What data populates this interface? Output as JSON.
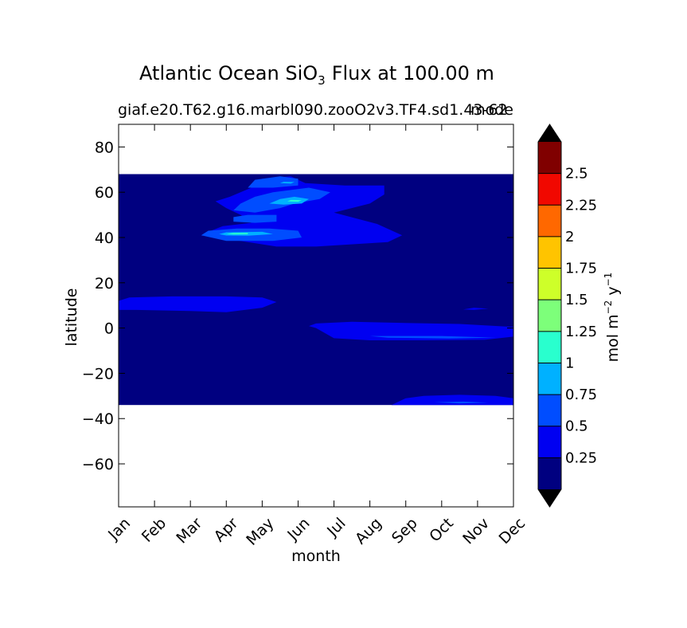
{
  "chart_data": {
    "type": "contourf",
    "title": {
      "main_prefix": "Atlantic Ocean SiO",
      "main_subscript": "3",
      "main_suffix": "Flux at 100.00 m",
      "subtitle": "giaf.e20.T62.g16.marbl090.zooO2v3.TF4.sd1.43-62",
      "subtitle_overlap": "mode"
    },
    "xlabel": "month",
    "ylabel": "latitude",
    "x_ticks": [
      "Jan",
      "Feb",
      "Mar",
      "Apr",
      "May",
      "Jun",
      "Jul",
      "Aug",
      "Sep",
      "Oct",
      "Nov",
      "Dec"
    ],
    "y_ticks": [
      80,
      60,
      40,
      20,
      0,
      -20,
      -40,
      -60
    ],
    "y_tick_labels": [
      "80",
      "60",
      "40",
      "20",
      "0",
      "−20",
      "−40",
      "−60"
    ],
    "xlim": [
      0,
      11
    ],
    "ylim": [
      -79,
      90
    ],
    "data_extent": {
      "lat_min": -34,
      "lat_max": 68
    },
    "colorbar": {
      "label_main": "mol m",
      "label_exp1": "−2",
      "label_mid": " y",
      "label_exp2": "−1",
      "extend": "both",
      "levels": [
        0,
        0.25,
        0.5,
        0.75,
        1,
        1.25,
        1.5,
        1.75,
        2,
        2.25,
        2.5,
        2.75
      ],
      "tick_labels": [
        "0.25",
        "0.5",
        "0.75",
        "1",
        "1.25",
        "1.5",
        "1.75",
        "2",
        "2.25",
        "2.5"
      ],
      "colors": [
        "#000080",
        "#0000f1",
        "#004dff",
        "#00b1ff",
        "#29ffce",
        "#7dff7a",
        "#ceff29",
        "#ffc400",
        "#ff6800",
        "#f10800",
        "#800000"
      ],
      "under_color": "#000000",
      "over_color": "#000000"
    },
    "regions": [
      {
        "level": 1,
        "poly": [
          [
            0,
            12
          ],
          [
            0.3,
            13.5
          ],
          [
            1.5,
            14
          ],
          [
            3.0,
            14
          ],
          [
            4.0,
            13.5
          ],
          [
            4.4,
            11.5
          ],
          [
            4.0,
            9
          ],
          [
            3.0,
            7
          ],
          [
            2.0,
            7.5
          ],
          [
            0.5,
            8
          ],
          [
            0,
            8
          ]
        ]
      },
      {
        "level": 1,
        "poly": [
          [
            3.6,
            38
          ],
          [
            3.2,
            39
          ],
          [
            2.7,
            40
          ],
          [
            2.5,
            42.5
          ],
          [
            2.9,
            45
          ],
          [
            3.7,
            46.5
          ],
          [
            3.4,
            50
          ],
          [
            3.0,
            53
          ],
          [
            2.7,
            56
          ],
          [
            3.1,
            58
          ],
          [
            3.7,
            62
          ],
          [
            4.0,
            66
          ],
          [
            4.8,
            67
          ],
          [
            5.2,
            64
          ],
          [
            6.3,
            63
          ],
          [
            7.4,
            63
          ],
          [
            7.4,
            59
          ],
          [
            7.0,
            55
          ],
          [
            6.0,
            51
          ],
          [
            7.2,
            46
          ],
          [
            7.9,
            41
          ],
          [
            7.5,
            38
          ],
          [
            5.5,
            36
          ],
          [
            4.4,
            36
          ]
        ]
      },
      {
        "level": 1,
        "poly": [
          [
            5.5,
            0
          ],
          [
            5.3,
            0.9
          ],
          [
            5.5,
            2
          ],
          [
            6.5,
            2.8
          ],
          [
            7.5,
            2.4
          ],
          [
            9.5,
            1.8
          ],
          [
            11,
            0.5
          ],
          [
            11,
            -3.8
          ],
          [
            10.2,
            -5.2
          ],
          [
            8.5,
            -5.4
          ],
          [
            7.0,
            -5.4
          ],
          [
            6.0,
            -4.5
          ]
        ]
      },
      {
        "level": 1,
        "poly": [
          [
            7.6,
            -34
          ],
          [
            8.0,
            -31
          ],
          [
            8.5,
            -30
          ],
          [
            9.5,
            -29.5
          ],
          [
            10.5,
            -30
          ],
          [
            11,
            -31
          ],
          [
            11,
            -34
          ]
        ]
      },
      {
        "level": 1,
        "poly": [
          [
            9.6,
            8.2
          ],
          [
            9.9,
            9
          ],
          [
            10.3,
            8.6
          ],
          [
            9.9,
            8
          ]
        ]
      },
      {
        "level": 2,
        "poly": [
          [
            2.3,
            41
          ],
          [
            2.5,
            43
          ],
          [
            3.3,
            44
          ],
          [
            4.2,
            44
          ],
          [
            5.0,
            43
          ],
          [
            5.1,
            40
          ],
          [
            4.3,
            38.5
          ],
          [
            3.0,
            38.5
          ]
        ]
      },
      {
        "level": 2,
        "poly": [
          [
            3.2,
            47
          ],
          [
            3.2,
            49
          ],
          [
            3.6,
            50
          ],
          [
            4.4,
            50
          ],
          [
            4.4,
            47
          ],
          [
            3.8,
            46.5
          ]
        ]
      },
      {
        "level": 2,
        "poly": [
          [
            3.2,
            52
          ],
          [
            3.4,
            55
          ],
          [
            3.8,
            58
          ],
          [
            4.3,
            60
          ],
          [
            5.3,
            62
          ],
          [
            5.9,
            60
          ],
          [
            5.6,
            57
          ],
          [
            4.9,
            55
          ],
          [
            4.5,
            53
          ],
          [
            3.8,
            51
          ]
        ]
      },
      {
        "level": 2,
        "poly": [
          [
            3.6,
            62
          ],
          [
            3.8,
            65.5
          ],
          [
            4.5,
            67
          ],
          [
            5.0,
            66
          ],
          [
            5.0,
            63
          ],
          [
            4.3,
            62
          ]
        ]
      },
      {
        "level": 2,
        "poly": [
          [
            7.0,
            -3.5
          ],
          [
            9.0,
            -3.5
          ],
          [
            10.5,
            -4.2
          ],
          [
            9.2,
            -4.6
          ],
          [
            7.5,
            -4.3
          ]
        ]
      },
      {
        "level": 2,
        "poly": [
          [
            8.8,
            -32.8
          ],
          [
            9.6,
            -32.5
          ],
          [
            10.3,
            -33
          ],
          [
            9.5,
            -33.3
          ]
        ]
      },
      {
        "level": 3,
        "poly": [
          [
            2.8,
            41.5
          ],
          [
            3.0,
            42.3
          ],
          [
            4.0,
            42.5
          ],
          [
            4.3,
            41.5
          ],
          [
            3.6,
            40.8
          ],
          [
            3.0,
            40.9
          ]
        ]
      },
      {
        "level": 3,
        "poly": [
          [
            4.2,
            55
          ],
          [
            4.5,
            57
          ],
          [
            4.9,
            58
          ],
          [
            5.3,
            57
          ],
          [
            5.1,
            55
          ],
          [
            4.6,
            54.5
          ]
        ]
      },
      {
        "level": 3,
        "poly": [
          [
            4.5,
            64
          ],
          [
            4.6,
            64.6
          ],
          [
            4.9,
            64.5
          ],
          [
            4.8,
            63.8
          ]
        ]
      },
      {
        "level": 4,
        "poly": [
          [
            3.0,
            41.6
          ],
          [
            3.2,
            42.0
          ],
          [
            3.6,
            42.0
          ],
          [
            3.6,
            41.4
          ],
          [
            3.2,
            41.3
          ]
        ]
      },
      {
        "level": 4,
        "poly": [
          [
            4.7,
            56
          ],
          [
            4.8,
            56.6
          ],
          [
            5.1,
            56.5
          ],
          [
            5.0,
            55.8
          ]
        ]
      }
    ]
  }
}
